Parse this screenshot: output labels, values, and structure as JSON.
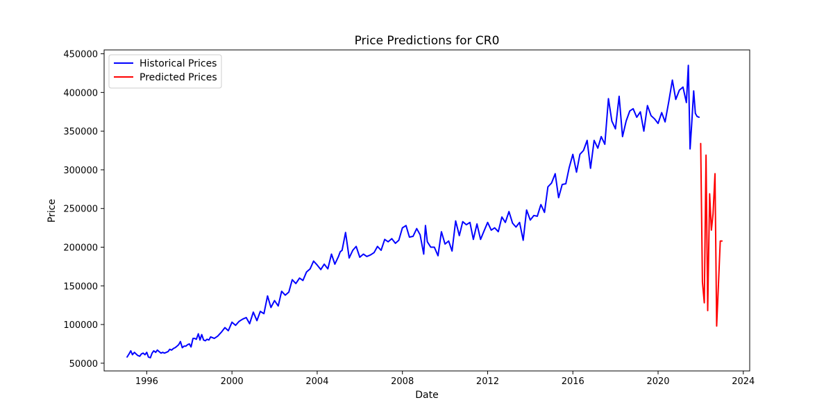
{
  "chart_data": {
    "type": "line",
    "title": "Price Predictions for CR0",
    "xlabel": "Date",
    "ylabel": "Price",
    "xlim": [
      1994.0,
      2024.3
    ],
    "ylim": [
      40000,
      455000
    ],
    "x_ticks": [
      1996,
      2000,
      2004,
      2008,
      2012,
      2016,
      2020,
      2024
    ],
    "y_ticks": [
      50000,
      100000,
      150000,
      200000,
      250000,
      300000,
      350000,
      400000,
      450000
    ],
    "grid": false,
    "legend_position": "upper-left",
    "series": [
      {
        "name": "Historical Prices",
        "color": "#0000ff",
        "x": [
          1995.08,
          1995.17,
          1995.25,
          1995.33,
          1995.42,
          1995.5,
          1995.58,
          1995.67,
          1995.75,
          1995.83,
          1995.92,
          1996.0,
          1996.08,
          1996.17,
          1996.25,
          1996.33,
          1996.42,
          1996.5,
          1996.58,
          1996.67,
          1996.75,
          1996.83,
          1996.92,
          1997.0,
          1997.08,
          1997.17,
          1997.25,
          1997.33,
          1997.42,
          1997.5,
          1997.58,
          1997.67,
          1997.75,
          1997.83,
          1997.92,
          1998.0,
          1998.08,
          1998.17,
          1998.25,
          1998.33,
          1998.42,
          1998.5,
          1998.58,
          1998.67,
          1998.75,
          1998.83,
          1998.92,
          1999.0,
          1999.17,
          1999.33,
          1999.5,
          1999.67,
          1999.83,
          2000.0,
          2000.17,
          2000.33,
          2000.5,
          2000.67,
          2000.83,
          2001.0,
          2001.17,
          2001.33,
          2001.5,
          2001.67,
          2001.83,
          2002.0,
          2002.17,
          2002.33,
          2002.5,
          2002.67,
          2002.83,
          2003.0,
          2003.17,
          2003.33,
          2003.5,
          2003.67,
          2003.83,
          2004.0,
          2004.17,
          2004.33,
          2004.5,
          2004.67,
          2004.83,
          2005.0,
          2005.08,
          2005.17,
          2005.33,
          2005.5,
          2005.67,
          2005.83,
          2006.0,
          2006.17,
          2006.33,
          2006.5,
          2006.67,
          2006.83,
          2007.0,
          2007.17,
          2007.33,
          2007.5,
          2007.67,
          2007.83,
          2008.0,
          2008.17,
          2008.33,
          2008.5,
          2008.67,
          2008.83,
          2009.0,
          2009.08,
          2009.17,
          2009.33,
          2009.5,
          2009.67,
          2009.83,
          2010.0,
          2010.17,
          2010.33,
          2010.5,
          2010.67,
          2010.83,
          2011.0,
          2011.17,
          2011.33,
          2011.5,
          2011.67,
          2011.83,
          2012.0,
          2012.17,
          2012.33,
          2012.5,
          2012.67,
          2012.83,
          2013.0,
          2013.17,
          2013.33,
          2013.5,
          2013.67,
          2013.83,
          2014.0,
          2014.17,
          2014.33,
          2014.5,
          2014.67,
          2014.83,
          2015.0,
          2015.17,
          2015.33,
          2015.5,
          2015.67,
          2015.83,
          2016.0,
          2016.17,
          2016.33,
          2016.5,
          2016.67,
          2016.83,
          2017.0,
          2017.17,
          2017.33,
          2017.5,
          2017.67,
          2017.83,
          2018.0,
          2018.17,
          2018.33,
          2018.5,
          2018.67,
          2018.83,
          2019.0,
          2019.17,
          2019.33,
          2019.5,
          2019.67,
          2019.83,
          2020.0,
          2020.17,
          2020.33,
          2020.5,
          2020.67,
          2020.83,
          2021.0,
          2021.17,
          2021.33,
          2021.42,
          2021.5,
          2021.58,
          2021.67,
          2021.75,
          2021.83,
          2021.92
        ],
        "values": [
          58000,
          62000,
          66000,
          61000,
          64000,
          62000,
          60000,
          59000,
          62000,
          63000,
          61000,
          64000,
          58000,
          57000,
          63000,
          66000,
          64000,
          67000,
          65000,
          63000,
          64000,
          63000,
          64000,
          65000,
          68000,
          67000,
          69000,
          70000,
          72000,
          74000,
          78000,
          70000,
          72000,
          72000,
          74000,
          75000,
          71000,
          82000,
          82000,
          81000,
          88000,
          80000,
          87000,
          80000,
          79000,
          81000,
          80000,
          84000,
          82000,
          85000,
          90000,
          96000,
          92000,
          103000,
          99000,
          104000,
          107000,
          109000,
          101000,
          116000,
          105000,
          117000,
          114000,
          137000,
          122000,
          131000,
          124000,
          143000,
          138000,
          142000,
          158000,
          153000,
          160000,
          157000,
          168000,
          172000,
          182000,
          177000,
          171000,
          178000,
          172000,
          191000,
          178000,
          188000,
          194000,
          196000,
          219000,
          186000,
          196000,
          201000,
          187000,
          191000,
          188000,
          190000,
          193000,
          201000,
          196000,
          210000,
          207000,
          211000,
          205000,
          209000,
          225000,
          228000,
          213000,
          214000,
          224000,
          216000,
          191000,
          228000,
          207000,
          200000,
          200000,
          189000,
          220000,
          204000,
          208000,
          195000,
          234000,
          215000,
          233000,
          229000,
          232000,
          210000,
          230000,
          210000,
          221000,
          232000,
          222000,
          225000,
          220000,
          239000,
          232000,
          246000,
          231000,
          226000,
          232000,
          209000,
          248000,
          235000,
          241000,
          240000,
          255000,
          245000,
          278000,
          283000,
          295000,
          264000,
          281000,
          282000,
          303000,
          320000,
          297000,
          320000,
          325000,
          338000,
          302000,
          338000,
          328000,
          343000,
          333000,
          392000,
          363000,
          353000,
          395000,
          343000,
          363000,
          376000,
          379000,
          368000,
          375000,
          350000,
          383000,
          370000,
          366000,
          360000,
          374000,
          362000,
          388000,
          416000,
          391000,
          403000,
          407000,
          387000,
          435000,
          327000,
          360000,
          402000,
          373000,
          369000,
          368000
        ],
        "values_note": "read from plot"
      },
      {
        "name": "Predicted Prices",
        "color": "#ff0000",
        "x": [
          2022.0,
          2022.08,
          2022.17,
          2022.25,
          2022.33,
          2022.42,
          2022.5,
          2022.58,
          2022.67,
          2022.75,
          2022.83,
          2022.92,
          2023.0
        ],
        "values": [
          334000,
          155000,
          128000,
          319000,
          118000,
          269000,
          222000,
          243000,
          295000,
          98000,
          150000,
          208000,
          208000
        ]
      }
    ]
  }
}
